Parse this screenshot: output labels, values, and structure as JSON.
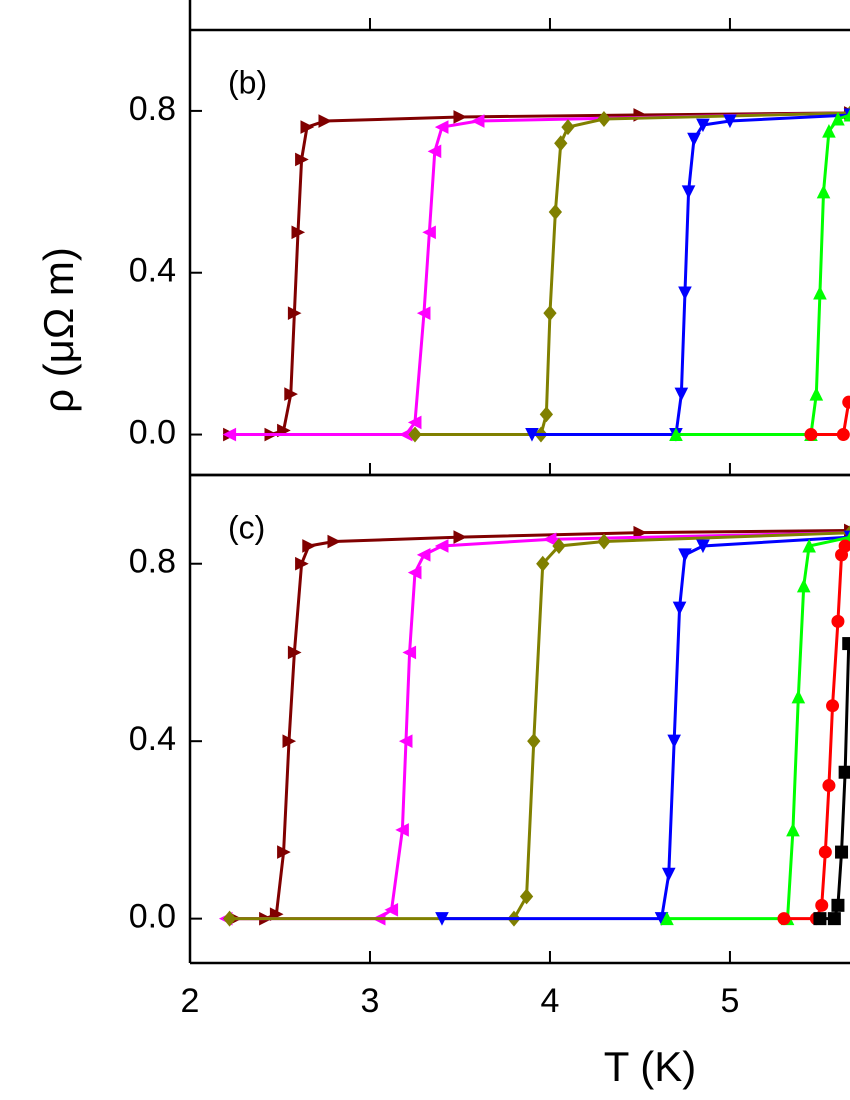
{
  "chart_data": [
    {
      "type": "line",
      "panel_label": "(b)",
      "ylabel": "ρ (μΩ m)",
      "xlim": [
        2,
        5.667
      ],
      "ylim": [
        -0.1,
        1.0
      ],
      "xticks": [
        2,
        3,
        4,
        5
      ],
      "yticks": [
        {
          "value": 0,
          "label": "0.0"
        },
        {
          "value": 0.4,
          "label": "0.4"
        },
        {
          "value": 0.8,
          "label": "0.8"
        }
      ],
      "series": [
        {
          "color": "#800000",
          "marker": "triangle-right",
          "x": [
            2.22,
            2.45,
            2.52,
            2.56,
            2.58,
            2.6,
            2.62,
            2.65,
            2.75,
            3.5,
            4.5,
            5.67
          ],
          "values": [
            0,
            0,
            0.01,
            0.1,
            0.3,
            0.5,
            0.68,
            0.76,
            0.775,
            0.785,
            0.79,
            0.795
          ]
        },
        {
          "color": "#ff00ff",
          "marker": "triangle-left",
          "x": [
            2.22,
            3.2,
            3.25,
            3.3,
            3.33,
            3.36,
            3.4,
            3.6,
            5.67
          ],
          "values": [
            0,
            0,
            0.03,
            0.3,
            0.5,
            0.7,
            0.76,
            0.775,
            0.795
          ]
        },
        {
          "color": "#808000",
          "marker": "diamond",
          "x": [
            3.25,
            3.95,
            3.98,
            4.0,
            4.03,
            4.06,
            4.1,
            4.3,
            5.67
          ],
          "values": [
            0,
            0,
            0.05,
            0.3,
            0.55,
            0.72,
            0.76,
            0.78,
            0.795
          ]
        },
        {
          "color": "#0000ff",
          "marker": "triangle-down",
          "x": [
            3.9,
            4.7,
            4.73,
            4.75,
            4.77,
            4.8,
            4.85,
            5.0,
            5.67
          ],
          "values": [
            0,
            0,
            0.1,
            0.35,
            0.6,
            0.73,
            0.765,
            0.775,
            0.79
          ]
        },
        {
          "color": "#00ff00",
          "marker": "triangle-up",
          "x": [
            4.7,
            5.45,
            5.48,
            5.5,
            5.52,
            5.55,
            5.6,
            5.67
          ],
          "values": [
            0,
            0,
            0.1,
            0.35,
            0.6,
            0.75,
            0.78,
            0.79
          ]
        },
        {
          "color": "#ff0000",
          "marker": "circle",
          "x": [
            5.45,
            5.63,
            5.66
          ],
          "values": [
            0,
            0,
            0.08
          ]
        }
      ]
    },
    {
      "type": "line",
      "panel_label": "(c)",
      "xlabel": "T (K)",
      "xlim": [
        2,
        5.667
      ],
      "ylim": [
        -0.1,
        1.0
      ],
      "xticks": [
        2,
        3,
        4,
        5
      ],
      "yticks": [
        {
          "value": 0,
          "label": "0.0"
        },
        {
          "value": 0.4,
          "label": "0.4"
        },
        {
          "value": 0.8,
          "label": "0.8"
        }
      ],
      "series": [
        {
          "color": "#800000",
          "marker": "triangle-right",
          "x": [
            2.25,
            2.42,
            2.48,
            2.52,
            2.55,
            2.58,
            2.62,
            2.66,
            2.8,
            3.5,
            4.5,
            5.67
          ],
          "values": [
            0,
            0,
            0.01,
            0.15,
            0.4,
            0.6,
            0.8,
            0.84,
            0.85,
            0.86,
            0.87,
            0.875
          ]
        },
        {
          "color": "#ff00ff",
          "marker": "triangle-left",
          "x": [
            2.2,
            3.05,
            3.12,
            3.18,
            3.2,
            3.22,
            3.25,
            3.3,
            3.4,
            4.0,
            5.67
          ],
          "values": [
            0,
            0,
            0.02,
            0.2,
            0.4,
            0.6,
            0.78,
            0.82,
            0.84,
            0.855,
            0.87
          ]
        },
        {
          "color": "#808000",
          "marker": "diamond",
          "x": [
            2.22,
            3.8,
            3.87,
            3.91,
            3.96,
            4.05,
            4.3,
            5.67
          ],
          "values": [
            0,
            0,
            0.05,
            0.4,
            0.8,
            0.84,
            0.85,
            0.87
          ]
        },
        {
          "color": "#0000ff",
          "marker": "triangle-down",
          "x": [
            3.4,
            4.62,
            4.66,
            4.69,
            4.72,
            4.75,
            4.85,
            5.67
          ],
          "values": [
            0,
            0,
            0.1,
            0.4,
            0.7,
            0.82,
            0.84,
            0.86
          ]
        },
        {
          "color": "#00ff00",
          "marker": "triangle-up",
          "x": [
            4.65,
            5.32,
            5.35,
            5.38,
            5.41,
            5.44,
            5.67
          ],
          "values": [
            0,
            0,
            0.2,
            0.5,
            0.75,
            0.84,
            0.86
          ]
        },
        {
          "color": "#ff0000",
          "marker": "circle",
          "x": [
            5.3,
            5.48,
            5.51,
            5.53,
            5.55,
            5.57,
            5.6,
            5.62,
            5.64
          ],
          "values": [
            0,
            0,
            0.03,
            0.15,
            0.3,
            0.48,
            0.67,
            0.82,
            0.84
          ]
        },
        {
          "color": "#000000",
          "marker": "square",
          "x": [
            5.5,
            5.58,
            5.6,
            5.62,
            5.64,
            5.66
          ],
          "values": [
            0,
            0,
            0.03,
            0.15,
            0.33,
            0.62
          ]
        }
      ]
    }
  ]
}
